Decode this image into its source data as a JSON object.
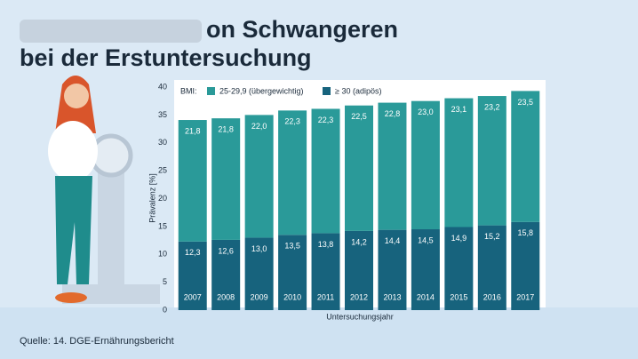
{
  "chart_data": {
    "type": "stacked_bar",
    "title": [
      "on Schwangeren",
      "bei der Erstuntersuchung"
    ],
    "legend_title": "BMI:",
    "categories": [
      "2007",
      "2008",
      "2009",
      "2010",
      "2011",
      "2012",
      "2013",
      "2014",
      "2015",
      "2016",
      "2017"
    ],
    "series": [
      {
        "name": "≥ 30 (adipös)",
        "color": "#17637d",
        "values": [
          12.3,
          12.6,
          13.0,
          13.5,
          13.8,
          14.2,
          14.4,
          14.5,
          14.9,
          15.2,
          15.8
        ],
        "value_labels": [
          "12,3",
          "12,6",
          "13,0",
          "13,5",
          "13,8",
          "14,2",
          "14,4",
          "14,5",
          "14,9",
          "15,2",
          "15,8"
        ]
      },
      {
        "name": "25-29,9 (übergewichtig)",
        "color": "#2a9a99",
        "values": [
          21.8,
          21.8,
          22.0,
          22.3,
          22.3,
          22.5,
          22.8,
          23.0,
          23.1,
          23.2,
          23.5
        ],
        "value_labels": [
          "21,8",
          "21,8",
          "22,0",
          "22,3",
          "22,3",
          "22,5",
          "22,8",
          "23,0",
          "23,1",
          "23,2",
          "23,5"
        ]
      }
    ],
    "ylabel": "Prävalenz [%]",
    "xlabel": "Untersuchungsjahr",
    "ylim": [
      0,
      40
    ],
    "yticks": [
      0,
      5,
      10,
      15,
      20,
      25,
      30,
      35,
      40
    ],
    "source": "Quelle: 14. DGE-Ernährungsbericht"
  }
}
